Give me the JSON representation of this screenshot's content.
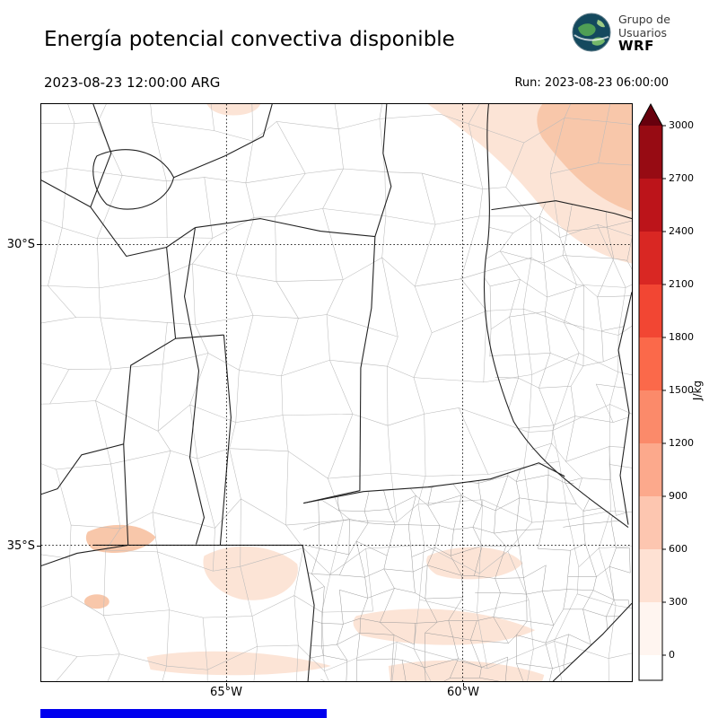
{
  "header": {
    "title": "Energía potencial convectiva disponible",
    "logo": {
      "line1": "Grupo de",
      "line2": "Usuarios",
      "line3": "WRF"
    }
  },
  "subheader": {
    "valid_time": "2023-08-23 12:00:00 ARG",
    "run_time": "Run: 2023-08-23 06:00:00"
  },
  "map_axes": {
    "lat_labels": [
      "30°S",
      "35°S"
    ],
    "lon_labels": [
      "65°W",
      "60°W"
    ]
  },
  "map_shading": {
    "light": "#fce4d6",
    "mid": "#f8c7aa"
  },
  "colorbar": {
    "unit": "J/kg",
    "ticks": [
      "0",
      "300",
      "600",
      "900",
      "1200",
      "1500",
      "1800",
      "2100",
      "2400",
      "2700",
      "3000"
    ],
    "under_color": "#ffffff",
    "segment_colors": [
      "#fff5f0",
      "#fee1d3",
      "#fdc6b0",
      "#fca98c",
      "#fb8a6a",
      "#fb694a",
      "#f24633",
      "#d92723",
      "#bc141a",
      "#970b13"
    ],
    "over_color": "#67000d"
  },
  "footer": {
    "bar_color": "#0000ee"
  },
  "chart_data": {
    "type": "heatmap",
    "title": "Energía potencial convectiva disponible",
    "units": "J/kg",
    "valid_time": "2023-08-23 12:00:00 ARG",
    "model_run": "2023-08-23 06:00:00",
    "levels": [
      0,
      300,
      600,
      900,
      1200,
      1500,
      1800,
      2100,
      2400,
      2700,
      3000
    ],
    "colormap": "white to dark red (Reds), triangular over-extension above 3000",
    "lat_gridlines": [
      "30°S",
      "35°S"
    ],
    "lon_gridlines": [
      "65°W",
      "60°W"
    ],
    "observed_values": [
      {
        "region": "most of the mapped domain (central Argentina)",
        "cape_jkg": 0
      },
      {
        "region": "northeast corner of map",
        "cape_jkg": "300–600"
      },
      {
        "region": "scattered band near 35°S",
        "cape_jkg": "0–300"
      },
      {
        "region": "patches along southern/bottom edge of domain",
        "cape_jkg": "0–300"
      }
    ]
  }
}
